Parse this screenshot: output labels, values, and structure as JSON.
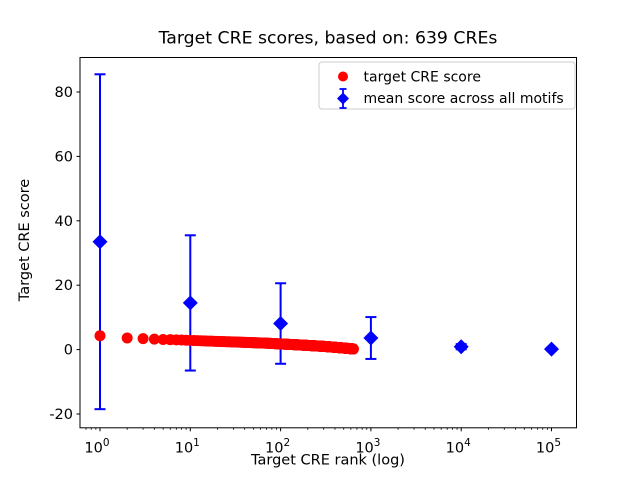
{
  "figure": {
    "title": "Target CRE scores, based on: 639 CREs",
    "xlabel": "Target CRE rank (log)",
    "ylabel": "Target CRE score"
  },
  "legend": {
    "position": "upper right",
    "entries": [
      {
        "label": "target CRE score",
        "marker": "circle",
        "color": "#ff0000"
      },
      {
        "label": "mean score across all motifs",
        "marker": "diamond-with-errorbar",
        "color": "#0000ff"
      }
    ]
  },
  "colors": {
    "red": "#ff0000",
    "blue": "#0000ff",
    "axis": "#000000",
    "legend_border": "#cccccc",
    "background": "#ffffff"
  },
  "chart_data": {
    "type": "scatter",
    "title": "Target CRE scores, based on: 639 CREs",
    "xlabel": "Target CRE rank (log)",
    "ylabel": "Target CRE score",
    "x_scale": "log",
    "x_ticks": [
      1,
      10,
      100,
      1000,
      10000,
      100000
    ],
    "y_ticks": [
      -20,
      0,
      20,
      40,
      60,
      80
    ],
    "ylim": [
      -24.1,
      90.7
    ],
    "xlim_log10": [
      -0.222,
      5.289
    ],
    "grid": false,
    "legend_position": "upper right",
    "n_cres": 639,
    "series": [
      {
        "name": "target CRE score",
        "marker": "circle",
        "color": "#ff0000",
        "n_points": 639,
        "rank_range": [
          1,
          639
        ],
        "interpolation": "log-linear",
        "sampled_points": [
          {
            "rank": 1,
            "score": 4.3
          },
          {
            "rank": 2,
            "score": 3.6
          },
          {
            "rank": 3,
            "score": 3.4
          },
          {
            "rank": 4,
            "score": 3.25
          },
          {
            "rank": 5,
            "score": 3.15
          },
          {
            "rank": 6,
            "score": 3.08
          },
          {
            "rank": 8,
            "score": 2.97
          },
          {
            "rank": 10,
            "score": 2.85
          },
          {
            "rank": 15,
            "score": 2.68
          },
          {
            "rank": 20,
            "score": 2.55
          },
          {
            "rank": 30,
            "score": 2.38
          },
          {
            "rank": 50,
            "score": 2.15
          },
          {
            "rank": 70,
            "score": 2.0
          },
          {
            "rank": 100,
            "score": 1.75
          },
          {
            "rank": 150,
            "score": 1.5
          },
          {
            "rank": 200,
            "score": 1.3
          },
          {
            "rank": 300,
            "score": 1.0
          },
          {
            "rank": 400,
            "score": 0.72
          },
          {
            "rank": 500,
            "score": 0.48
          },
          {
            "rank": 600,
            "score": 0.28
          },
          {
            "rank": 639,
            "score": 0.2
          }
        ]
      },
      {
        "name": "mean score across all motifs",
        "marker": "diamond",
        "color": "#0000ff",
        "error_bars": true,
        "points": [
          {
            "rank": 1,
            "mean": 33.5,
            "std": 52
          },
          {
            "rank": 10,
            "mean": 14.5,
            "std": 21
          },
          {
            "rank": 100,
            "mean": 8.1,
            "std": 12.5
          },
          {
            "rank": 1000,
            "mean": 3.6,
            "std": 6.5
          },
          {
            "rank": 10000,
            "mean": 0.9,
            "std": 0.8
          },
          {
            "rank": 100000,
            "mean": 0.15,
            "std": 0.4
          }
        ]
      }
    ]
  }
}
